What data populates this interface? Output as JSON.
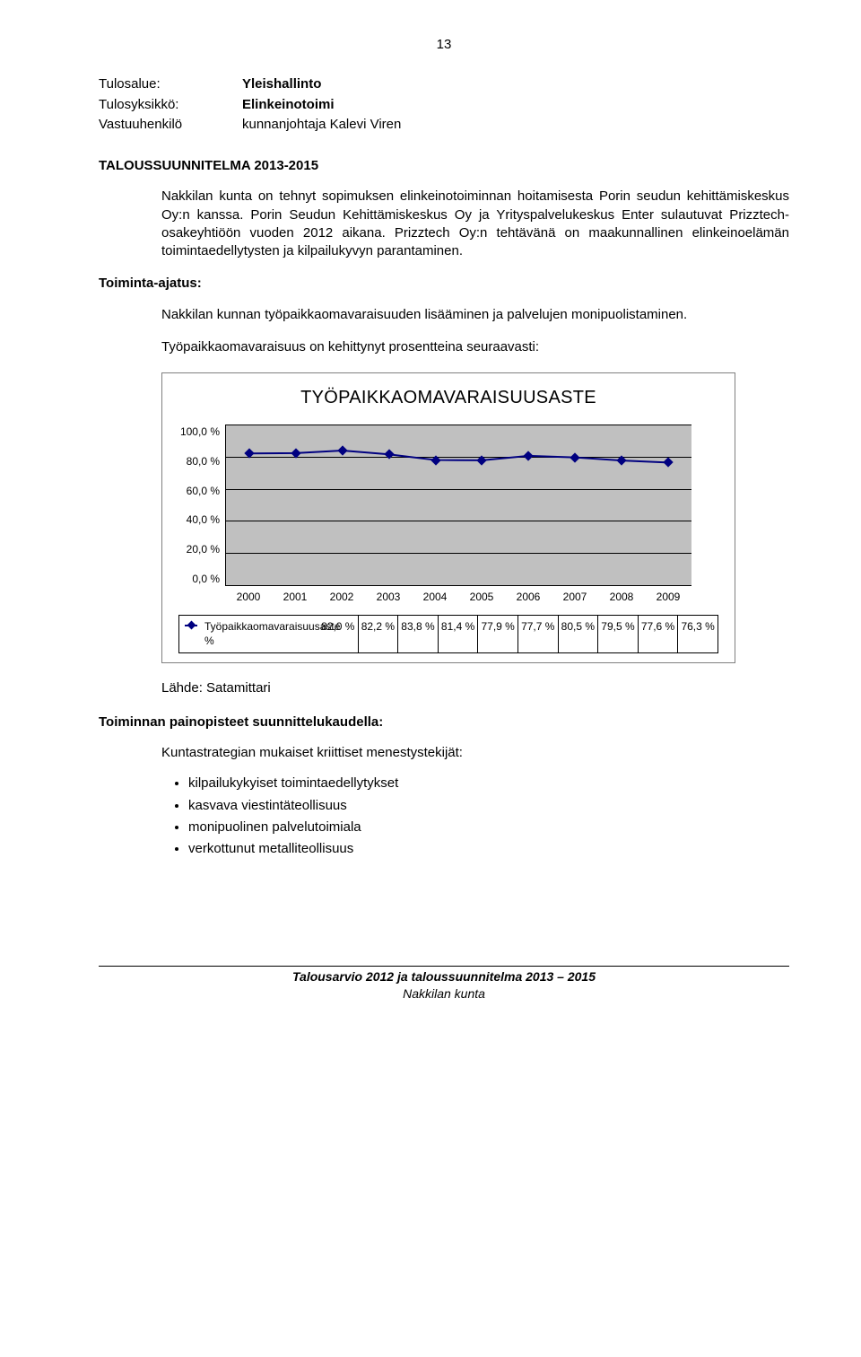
{
  "page_number": "13",
  "definitions": [
    {
      "label": "Tulosalue:",
      "value": "Yleishallinto",
      "bold": true
    },
    {
      "label": "Tulosyksikkö:",
      "value": "Elinkeinotoimi",
      "bold": true
    },
    {
      "label": "Vastuuhenkilö",
      "value": "kunnanjohtaja Kalevi Viren",
      "bold": false
    }
  ],
  "heading1": "TALOUSSUUNNITELMA 2013-2015",
  "para1": "Nakkilan kunta on tehnyt sopimuksen elinkeinotoiminnan hoitamisesta Porin seudun kehittämiskeskus Oy:n kanssa. Porin Seudun Kehittämiskeskus Oy ja Yrityspalvelukeskus Enter sulautuvat Prizztech-osakeyhtiöön vuoden 2012 aikana. Prizztech Oy:n tehtävänä on maakunnallinen elinkeinoelämän toimintaedellytysten ja kilpailukyvyn parantaminen.",
  "heading2": "Toiminta-ajatus:",
  "para2": "Nakkilan kunnan työpaikkaomavaraisuuden lisääminen ja palvelujen monipuolistaminen.",
  "para3": "Työpaikkaomavaraisuus on kehittynyt prosentteina seuraavasti:",
  "chart": {
    "type": "line",
    "title": "TYÖPAIKKAOMAVARAISUUSASTE",
    "y_ticks": [
      "100,0 %",
      "80,0 %",
      "60,0 %",
      "40,0 %",
      "20,0 %",
      "0,0 %"
    ],
    "ylim": [
      0,
      100
    ],
    "x_labels": [
      "2000",
      "2001",
      "2002",
      "2003",
      "2004",
      "2005",
      "2006",
      "2007",
      "2008",
      "2009"
    ],
    "series_label": "Työpaikkaomavaraisuusaste %",
    "values_display": [
      "82,0 %",
      "82,2 %",
      "83,8 %",
      "81,4 %",
      "77,9 %",
      "77,7 %",
      "80,5 %",
      "79,5 %",
      "77,6 %",
      "76,3 %"
    ],
    "values_numeric": [
      82.0,
      82.2,
      83.8,
      81.4,
      77.9,
      77.7,
      80.5,
      79.5,
      77.6,
      76.3
    ],
    "line_color": "#000080",
    "marker_color": "#000080",
    "plot_bg": "#c0c0c0",
    "grid_color": "#000000"
  },
  "source": "Lähde: Satamittari",
  "heading3": "Toiminnan painopisteet suunnittelukaudella:",
  "para4": "Kuntastrategian mukaiset kriittiset menestystekijät:",
  "bullets": [
    "kilpailukykyiset toimintaedellytykset",
    "kasvava viestintäteollisuus",
    "monipuolinen palvelutoimiala",
    "verkottunut metalliteollisuus"
  ],
  "footer_line1": "Talousarvio 2012  ja taloussuunnitelma 2013 – 2015",
  "footer_line2": "Nakkilan kunta"
}
